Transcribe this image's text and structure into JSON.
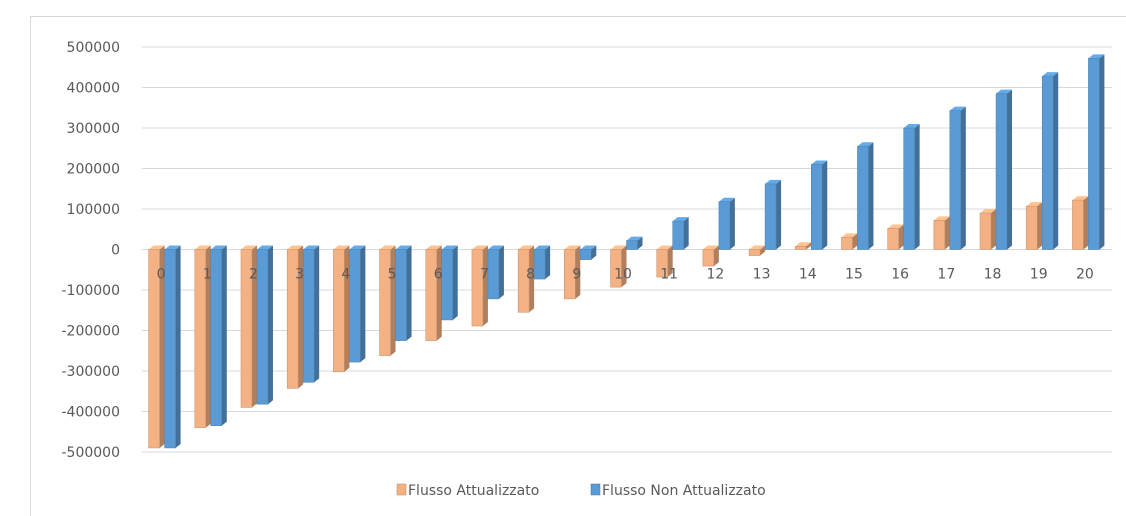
{
  "chart_data": {
    "type": "bar",
    "title": "",
    "xlabel": "",
    "ylabel": "",
    "ylim": [
      -500000,
      500000
    ],
    "yticks": [
      500000,
      400000,
      300000,
      200000,
      100000,
      0,
      -100000,
      -200000,
      -300000,
      -400000,
      -500000
    ],
    "grid": true,
    "legend_position": "bottom",
    "categories": [
      "0",
      "1",
      "2",
      "3",
      "4",
      "5",
      "6",
      "7",
      "8",
      "9",
      "10",
      "11",
      "12",
      "13",
      "14",
      "15",
      "16",
      "17",
      "18",
      "19",
      "20"
    ],
    "series": [
      {
        "name": "Flusso Attualizzato",
        "color": "#f4b183",
        "values": [
          -490000,
          -440000,
          -390000,
          -343000,
          -302000,
          -262000,
          -225000,
          -189000,
          -155000,
          -122000,
          -93000,
          -68000,
          -41000,
          -15000,
          8000,
          30000,
          52000,
          72000,
          90000,
          107000,
          122000
        ]
      },
      {
        "name": "Flusso Non Attualizzato",
        "color": "#5b9bd5",
        "values": [
          -490000,
          -435000,
          -382000,
          -328000,
          -278000,
          -225000,
          -174000,
          -122000,
          -73000,
          -25000,
          22000,
          70000,
          118000,
          162000,
          210000,
          255000,
          300000,
          343000,
          385000,
          428000,
          472000
        ]
      }
    ]
  }
}
